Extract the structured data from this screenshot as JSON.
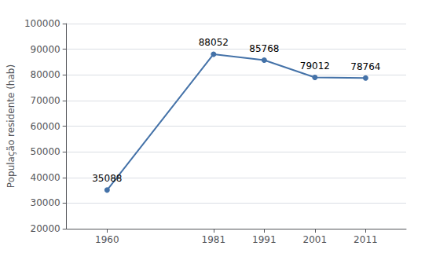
{
  "chart_data": {
    "type": "line",
    "x": [
      1960,
      1981,
      1991,
      2001,
      2011
    ],
    "values": [
      35088,
      88052,
      85768,
      79012,
      78764
    ],
    "color": "#4472a8",
    "marker": "circle",
    "ylabel": "População residente (hab)",
    "xlim": [
      1952,
      2019
    ],
    "xticks": [
      1960,
      1981,
      1991,
      2001,
      2011
    ],
    "ylim": [
      20000,
      100000
    ],
    "yticks": [
      20000,
      30000,
      40000,
      50000,
      60000,
      70000,
      80000,
      90000,
      100000
    ],
    "grid": true,
    "data_labels": true
  }
}
